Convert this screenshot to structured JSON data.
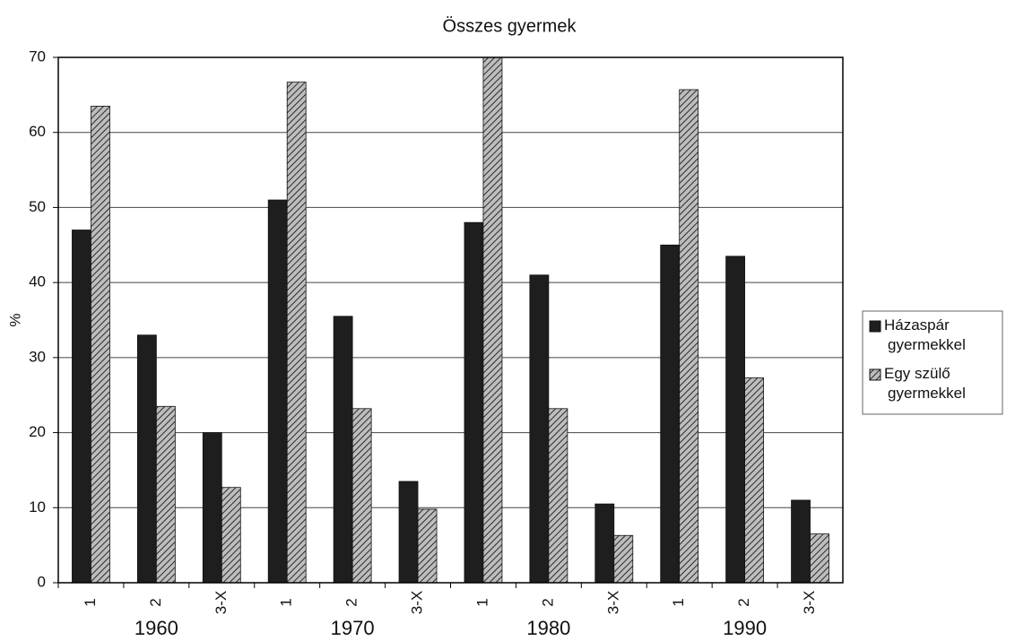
{
  "chart_data": {
    "type": "bar",
    "title": "Összes gyermek",
    "y_label": "%",
    "categories": [
      "1",
      "2",
      "3-X",
      "1",
      "2",
      "3-X",
      "1",
      "2",
      "3-X",
      "1",
      "2",
      "3-X"
    ],
    "groups": [
      "1960",
      "1970",
      "1980",
      "1990"
    ],
    "series": [
      {
        "name": "Házaspár gyermekkel",
        "color": "#1e1e1e",
        "values": [
          47,
          33,
          20,
          51,
          35.5,
          13.5,
          48,
          41,
          10.5,
          45,
          43.5,
          11
        ]
      },
      {
        "name": "Egy szülő gyermekkel",
        "color": "hatch",
        "values": [
          63.5,
          23.5,
          12.7,
          66.7,
          23.2,
          9.8,
          70,
          23.2,
          6.3,
          65.7,
          27.3,
          6.5
        ]
      }
    ],
    "ylim": [
      0,
      70
    ],
    "yticks": [
      0,
      10,
      20,
      30,
      40,
      50,
      60,
      70
    ],
    "grid": true,
    "legend": "right"
  }
}
